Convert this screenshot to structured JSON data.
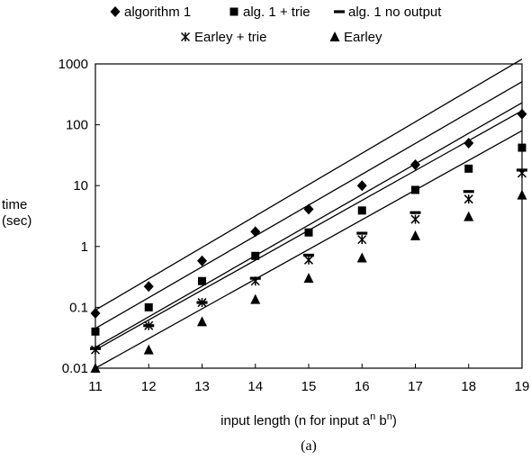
{
  "chart_data": {
    "type": "scatter",
    "title": "",
    "caption": "(a)",
    "xlabel": {
      "text": "input length (n for input a",
      "sup1": "n",
      "mid": " b",
      "sup2": "n",
      "end": ")"
    },
    "ylabel": [
      "time",
      "(sec)"
    ],
    "x_ticks": [
      "11",
      "12",
      "13",
      "14",
      "15",
      "16",
      "17",
      "18",
      "19"
    ],
    "y_ticks": [
      "0.01",
      "0.1",
      "1",
      "10",
      "100",
      "1000"
    ],
    "xlim": [
      11,
      19
    ],
    "ylim": [
      0.01,
      1000
    ],
    "y_scale": "log",
    "grid": false,
    "legend_position": "top",
    "x": [
      11,
      12,
      13,
      14,
      15,
      16,
      17,
      18,
      19
    ],
    "series": [
      {
        "name": "algorithm 1",
        "marker": "diamond",
        "values": [
          0.08,
          0.22,
          0.58,
          1.75,
          4.1,
          10,
          22,
          50,
          150
        ],
        "trend": [
          0.09,
          1200
        ]
      },
      {
        "name": "alg. 1 + trie",
        "marker": "square",
        "values": [
          0.04,
          0.1,
          0.27,
          0.7,
          1.7,
          3.9,
          8.5,
          19,
          42
        ],
        "trend": [
          0.045,
          510
        ]
      },
      {
        "name": "alg. 1 no output",
        "marker": "dash",
        "values": [
          0.021,
          0.05,
          0.12,
          0.3,
          0.72,
          1.65,
          3.6,
          8,
          18
        ],
        "trend": [
          0.022,
          230
        ]
      },
      {
        "name": "Earley + trie",
        "marker": "asterisk",
        "values": [
          0.02,
          0.05,
          0.12,
          0.27,
          0.6,
          1.3,
          2.8,
          6,
          16
        ],
        "trend": [
          0.02,
          170
        ]
      },
      {
        "name": "Earley",
        "marker": "triangle",
        "values": [
          0.01,
          0.02,
          0.058,
          0.135,
          0.3,
          0.65,
          1.5,
          3.1,
          7
        ],
        "trend": [
          0.01,
          80
        ]
      }
    ]
  }
}
